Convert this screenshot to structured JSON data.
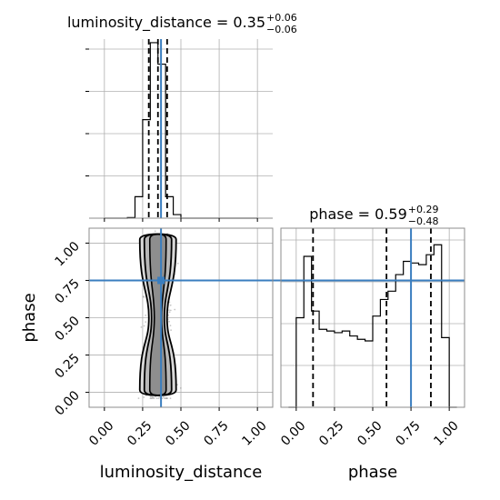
{
  "chart_data": [
    {
      "type": "histogram",
      "panel": "luminosity_distance marginal",
      "title": {
        "param": "luminosity_distance",
        "median": "0.35",
        "plus": "+0.06",
        "minus": "−0.06"
      },
      "xlim": [
        -0.1,
        1.1
      ],
      "bin_edges": [
        0.0,
        0.05,
        0.1,
        0.15,
        0.2,
        0.25,
        0.3,
        0.35,
        0.4,
        0.45,
        0.5,
        0.55,
        0.6,
        0.65,
        0.7,
        0.75,
        0.8,
        0.85,
        0.9,
        0.95,
        1.0
      ],
      "counts": [
        0,
        0,
        0,
        0.003,
        0.12,
        0.55,
        0.98,
        0.86,
        0.12,
        0.02,
        0,
        0,
        0,
        0,
        0,
        0,
        0,
        0,
        0,
        0
      ],
      "quantiles": [
        0.29,
        0.35,
        0.41
      ],
      "truth": 0.37,
      "x_ticks": [
        "0.00",
        "0.25",
        "0.50",
        "0.75",
        "1.00"
      ]
    },
    {
      "type": "histogram",
      "panel": "phase marginal",
      "title": {
        "param": "phase",
        "median": "0.59",
        "plus": "+0.29",
        "minus": "−0.48"
      },
      "xlim": [
        -0.1,
        1.1
      ],
      "bin_edges": [
        -0.05,
        0.0,
        0.05,
        0.1,
        0.15,
        0.2,
        0.25,
        0.3,
        0.35,
        0.4,
        0.45,
        0.5,
        0.55,
        0.6,
        0.65,
        0.7,
        0.75,
        0.8,
        0.85,
        0.9,
        0.95,
        1.0,
        1.05
      ],
      "counts": [
        0.0,
        0.54,
        0.91,
        0.58,
        0.47,
        0.46,
        0.45,
        0.46,
        0.43,
        0.41,
        0.4,
        0.55,
        0.65,
        0.7,
        0.8,
        0.88,
        0.87,
        0.86,
        0.92,
        0.98,
        0.42,
        0.0
      ],
      "ylim_top": 1.08,
      "quantiles": [
        0.11,
        0.59,
        0.88
      ],
      "truth": 0.75,
      "x_ticks": [
        "0.00",
        "0.25",
        "0.50",
        "0.75",
        "1.00"
      ],
      "xlabel": "phase"
    },
    {
      "type": "scatter",
      "panel": "joint luminosity_distance vs phase",
      "xlim": [
        -0.1,
        1.1
      ],
      "ylim": [
        -0.1,
        1.1
      ],
      "x_center": 0.35,
      "x_spread": 0.045,
      "truth_x": 0.37,
      "truth_y": 0.75,
      "x_ticks": [
        "0.00",
        "0.25",
        "0.50",
        "0.75",
        "1.00"
      ],
      "y_ticks": [
        "0.00",
        "0.25",
        "0.50",
        "0.75",
        "1.00"
      ],
      "xlabel": "luminosity_distance",
      "ylabel": "phase"
    }
  ]
}
